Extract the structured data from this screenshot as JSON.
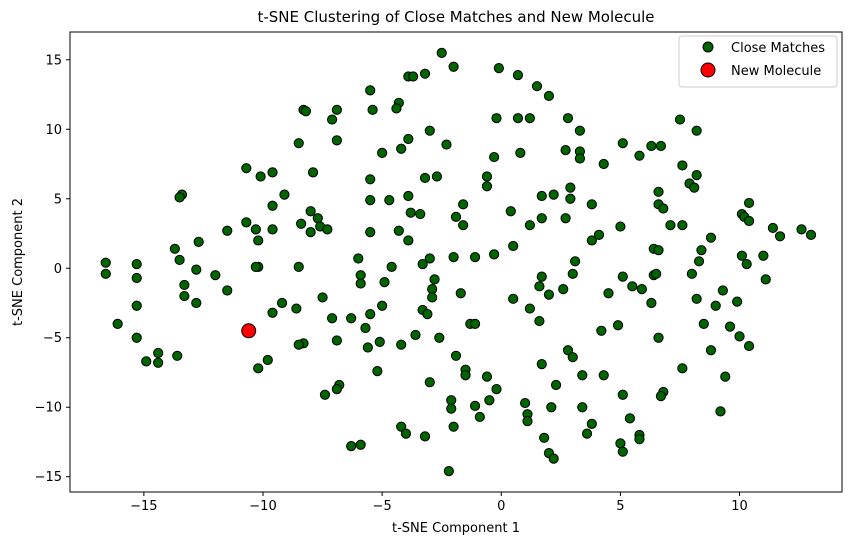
{
  "chart_data": {
    "type": "scatter",
    "title": "t-SNE Clustering of Close Matches and New Molecule",
    "xlabel": "t-SNE Component 1",
    "ylabel": "t-SNE Component 2",
    "xlim": [
      -18.1,
      14.3
    ],
    "ylim": [
      -16.1,
      17.0
    ],
    "xticks": [
      -15,
      -10,
      -5,
      0,
      5,
      10
    ],
    "yticks": [
      -15,
      -10,
      -5,
      0,
      5,
      10,
      15
    ],
    "grid": false,
    "legend_position": "top-right",
    "series": [
      {
        "name": "Close Matches",
        "color": "#006400",
        "edge_color": "#000000",
        "points": [
          [
            -2.5,
            15.5
          ],
          [
            -2.0,
            14.5
          ],
          [
            -0.1,
            14.4
          ],
          [
            0.7,
            13.9
          ],
          [
            -3.9,
            13.8
          ],
          [
            -3.2,
            14.0
          ],
          [
            -3.7,
            13.8
          ],
          [
            -5.5,
            12.8
          ],
          [
            1.5,
            13.1
          ],
          [
            2.0,
            12.4
          ],
          [
            -4.3,
            11.9
          ],
          [
            -4.4,
            11.5
          ],
          [
            -6.9,
            11.4
          ],
          [
            -8.3,
            11.4
          ],
          [
            -8.2,
            11.3
          ],
          [
            -5.4,
            11.4
          ],
          [
            -7.1,
            10.7
          ],
          [
            -0.2,
            10.8
          ],
          [
            0.7,
            10.8
          ],
          [
            1.2,
            10.8
          ],
          [
            2.8,
            10.8
          ],
          [
            7.5,
            10.7
          ],
          [
            8.2,
            9.9
          ],
          [
            3.3,
            9.9
          ],
          [
            -3.0,
            9.9
          ],
          [
            -3.9,
            9.3
          ],
          [
            -6.9,
            9.2
          ],
          [
            -8.5,
            9.0
          ],
          [
            -2.3,
            8.9
          ],
          [
            -4.2,
            8.6
          ],
          [
            5.1,
            9.0
          ],
          [
            6.3,
            8.8
          ],
          [
            6.7,
            8.8
          ],
          [
            3.3,
            8.4
          ],
          [
            2.7,
            8.5
          ],
          [
            0.8,
            8.3
          ],
          [
            -5.0,
            8.3
          ],
          [
            -0.3,
            8.0
          ],
          [
            3.3,
            7.9
          ],
          [
            4.3,
            7.5
          ],
          [
            5.8,
            8.1
          ],
          [
            7.6,
            7.4
          ],
          [
            -10.7,
            7.2
          ],
          [
            -7.9,
            6.9
          ],
          [
            -9.6,
            6.9
          ],
          [
            -3.2,
            6.5
          ],
          [
            -2.7,
            6.6
          ],
          [
            -0.6,
            6.6
          ],
          [
            8.2,
            6.7
          ],
          [
            -10.1,
            6.6
          ],
          [
            -5.5,
            6.4
          ],
          [
            7.9,
            6.1
          ],
          [
            -0.6,
            5.9
          ],
          [
            2.9,
            5.8
          ],
          [
            8.1,
            5.8
          ],
          [
            2.2,
            5.3
          ],
          [
            6.6,
            5.5
          ],
          [
            -13.4,
            5.3
          ],
          [
            -13.5,
            5.1
          ],
          [
            -9.1,
            5.3
          ],
          [
            -3.9,
            5.2
          ],
          [
            1.7,
            5.2
          ],
          [
            2.9,
            5.0
          ],
          [
            -5.5,
            4.9
          ],
          [
            -4.7,
            4.9
          ],
          [
            -1.6,
            4.6
          ],
          [
            6.6,
            4.6
          ],
          [
            10.4,
            4.7
          ],
          [
            3.8,
            4.6
          ],
          [
            6.8,
            4.3
          ],
          [
            -9.6,
            4.5
          ],
          [
            -8.0,
            4.1
          ],
          [
            -3.8,
            4.0
          ],
          [
            -3.4,
            3.9
          ],
          [
            0.4,
            4.1
          ],
          [
            -1.9,
            3.7
          ],
          [
            1.7,
            3.6
          ],
          [
            -7.7,
            3.6
          ],
          [
            2.7,
            3.6
          ],
          [
            10.1,
            3.9
          ],
          [
            10.2,
            3.7
          ],
          [
            10.4,
            3.4
          ],
          [
            -10.7,
            3.3
          ],
          [
            -8.4,
            3.2
          ],
          [
            -7.6,
            3.0
          ],
          [
            1.2,
            3.1
          ],
          [
            -1.6,
            3.1
          ],
          [
            5.0,
            3.0
          ],
          [
            7.1,
            3.1
          ],
          [
            7.6,
            3.1
          ],
          [
            -10.3,
            2.8
          ],
          [
            -9.6,
            2.8
          ],
          [
            -8.0,
            2.6
          ],
          [
            -7.3,
            2.8
          ],
          [
            -11.5,
            2.7
          ],
          [
            -4.3,
            2.7
          ],
          [
            -5.5,
            2.6
          ],
          [
            3.8,
            2.0
          ],
          [
            4.1,
            2.4
          ],
          [
            8.8,
            2.2
          ],
          [
            11.4,
            2.9
          ],
          [
            12.6,
            2.8
          ],
          [
            13.0,
            2.4
          ],
          [
            -3.9,
            2.0
          ],
          [
            -12.7,
            1.9
          ],
          [
            -10.2,
            2.0
          ],
          [
            0.5,
            1.6
          ],
          [
            6.4,
            1.4
          ],
          [
            6.6,
            1.3
          ],
          [
            -13.7,
            1.4
          ],
          [
            8.4,
            1.3
          ],
          [
            11.0,
            0.9
          ],
          [
            11.7,
            2.3
          ],
          [
            -16.6,
            0.4
          ],
          [
            -15.3,
            0.3
          ],
          [
            -13.5,
            0.6
          ],
          [
            -6.0,
            0.7
          ],
          [
            -2.0,
            0.8
          ],
          [
            -1.1,
            0.8
          ],
          [
            -3.0,
            0.7
          ],
          [
            10.1,
            0.9
          ],
          [
            10.3,
            0.3
          ],
          [
            -10.2,
            0.1
          ],
          [
            -10.3,
            0.1
          ],
          [
            -8.5,
            0.1
          ],
          [
            -4.6,
            0.1
          ],
          [
            -3.3,
            0.3
          ],
          [
            -0.3,
            1.0
          ],
          [
            3.1,
            0.5
          ],
          [
            8.3,
            0.5
          ],
          [
            -12.8,
            -0.1
          ],
          [
            -16.6,
            -0.4
          ],
          [
            -12.0,
            -0.5
          ],
          [
            -5.9,
            -0.5
          ],
          [
            -5.9,
            -1.1
          ],
          [
            -2.8,
            -0.8
          ],
          [
            1.7,
            -0.6
          ],
          [
            3.0,
            -0.4
          ],
          [
            5.1,
            -0.6
          ],
          [
            6.4,
            -0.5
          ],
          [
            6.5,
            -0.4
          ],
          [
            8.0,
            -0.4
          ],
          [
            11.1,
            -0.8
          ],
          [
            -15.3,
            -0.7
          ],
          [
            -13.3,
            -1.2
          ],
          [
            -4.9,
            -1.0
          ],
          [
            -2.9,
            -1.5
          ],
          [
            -1.7,
            -1.8
          ],
          [
            1.6,
            -1.3
          ],
          [
            2.6,
            -1.5
          ],
          [
            5.5,
            -1.3
          ],
          [
            5.9,
            -1.5
          ],
          [
            6.3,
            -2.5
          ],
          [
            8.2,
            -2.2
          ],
          [
            9.3,
            -1.6
          ],
          [
            -11.5,
            -1.6
          ],
          [
            -13.3,
            -2.0
          ],
          [
            -12.8,
            -2.5
          ],
          [
            -7.5,
            -2.1
          ],
          [
            -2.9,
            -2.1
          ],
          [
            0.5,
            -2.2
          ],
          [
            2.0,
            -1.9
          ],
          [
            4.5,
            -1.8
          ],
          [
            -15.3,
            -2.7
          ],
          [
            -9.2,
            -2.5
          ],
          [
            -5.0,
            -2.7
          ],
          [
            9.0,
            -2.7
          ],
          [
            9.9,
            -2.4
          ],
          [
            -8.6,
            -2.9
          ],
          [
            -3.3,
            -3.0
          ],
          [
            -5.5,
            -3.3
          ],
          [
            -3.1,
            -3.3
          ],
          [
            1.2,
            -2.9
          ],
          [
            -6.3,
            -3.6
          ],
          [
            -7.1,
            -3.6
          ],
          [
            -9.6,
            -3.2
          ],
          [
            -1.3,
            -4.0
          ],
          [
            -1.1,
            -4.0
          ],
          [
            1.6,
            -3.8
          ],
          [
            4.9,
            -4.1
          ],
          [
            8.5,
            -4.0
          ],
          [
            9.6,
            -4.2
          ],
          [
            -16.1,
            -4.0
          ],
          [
            -5.7,
            -4.3
          ],
          [
            -3.6,
            -4.8
          ],
          [
            4.2,
            -4.5
          ],
          [
            10.0,
            -4.9
          ],
          [
            -15.3,
            -5.0
          ],
          [
            -8.3,
            -5.4
          ],
          [
            -8.5,
            -5.5
          ],
          [
            -6.9,
            -5.2
          ],
          [
            -5.1,
            -5.3
          ],
          [
            -4.2,
            -5.5
          ],
          [
            -2.6,
            -5.0
          ],
          [
            2.8,
            -5.9
          ],
          [
            10.4,
            -5.6
          ],
          [
            6.6,
            -5.0
          ],
          [
            -5.6,
            -5.7
          ],
          [
            -1.9,
            -6.3
          ],
          [
            -14.4,
            -6.1
          ],
          [
            -13.6,
            -6.3
          ],
          [
            -9.8,
            -6.6
          ],
          [
            3.0,
            -6.4
          ],
          [
            8.8,
            -5.9
          ],
          [
            -14.9,
            -6.7
          ],
          [
            -14.4,
            -6.8
          ],
          [
            -10.2,
            -7.2
          ],
          [
            -5.2,
            -7.4
          ],
          [
            -1.5,
            -7.3
          ],
          [
            -1.5,
            -7.7
          ],
          [
            1.7,
            -6.9
          ],
          [
            4.3,
            -7.7
          ],
          [
            7.6,
            -7.2
          ],
          [
            9.4,
            -7.8
          ],
          [
            -0.6,
            -7.8
          ],
          [
            3.4,
            -7.7
          ],
          [
            -6.8,
            -8.4
          ],
          [
            -6.9,
            -8.7
          ],
          [
            -3.0,
            -8.2
          ],
          [
            -0.2,
            -8.7
          ],
          [
            2.3,
            -8.4
          ],
          [
            6.8,
            -8.9
          ],
          [
            6.7,
            -9.2
          ],
          [
            -7.4,
            -9.1
          ],
          [
            5.1,
            -9.1
          ],
          [
            -2.1,
            -9.5
          ],
          [
            -0.5,
            -9.5
          ],
          [
            1.0,
            -9.7
          ],
          [
            -1.1,
            -9.9
          ],
          [
            -2.1,
            -10.1
          ],
          [
            3.4,
            -10.0
          ],
          [
            -0.9,
            -10.7
          ],
          [
            1.1,
            -10.5
          ],
          [
            2.1,
            -10.0
          ],
          [
            5.4,
            -10.8
          ],
          [
            9.2,
            -10.3
          ],
          [
            3.8,
            -11.2
          ],
          [
            -2.0,
            -11.4
          ],
          [
            -4.2,
            -11.4
          ],
          [
            1.1,
            -11.0
          ],
          [
            -4.0,
            -11.9
          ],
          [
            -3.2,
            -12.1
          ],
          [
            1.8,
            -12.2
          ],
          [
            3.6,
            -11.9
          ],
          [
            5.8,
            -12.0
          ],
          [
            5.8,
            -12.3
          ],
          [
            -6.3,
            -12.8
          ],
          [
            -5.9,
            -12.7
          ],
          [
            5.0,
            -12.6
          ],
          [
            2.0,
            -13.3
          ],
          [
            5.1,
            -13.2
          ],
          [
            2.2,
            -13.7
          ],
          [
            -2.2,
            -14.6
          ]
        ]
      },
      {
        "name": "New Molecule",
        "color": "#ff0000",
        "edge_color": "#000000",
        "points": [
          [
            -10.6,
            -4.5
          ]
        ]
      }
    ]
  }
}
